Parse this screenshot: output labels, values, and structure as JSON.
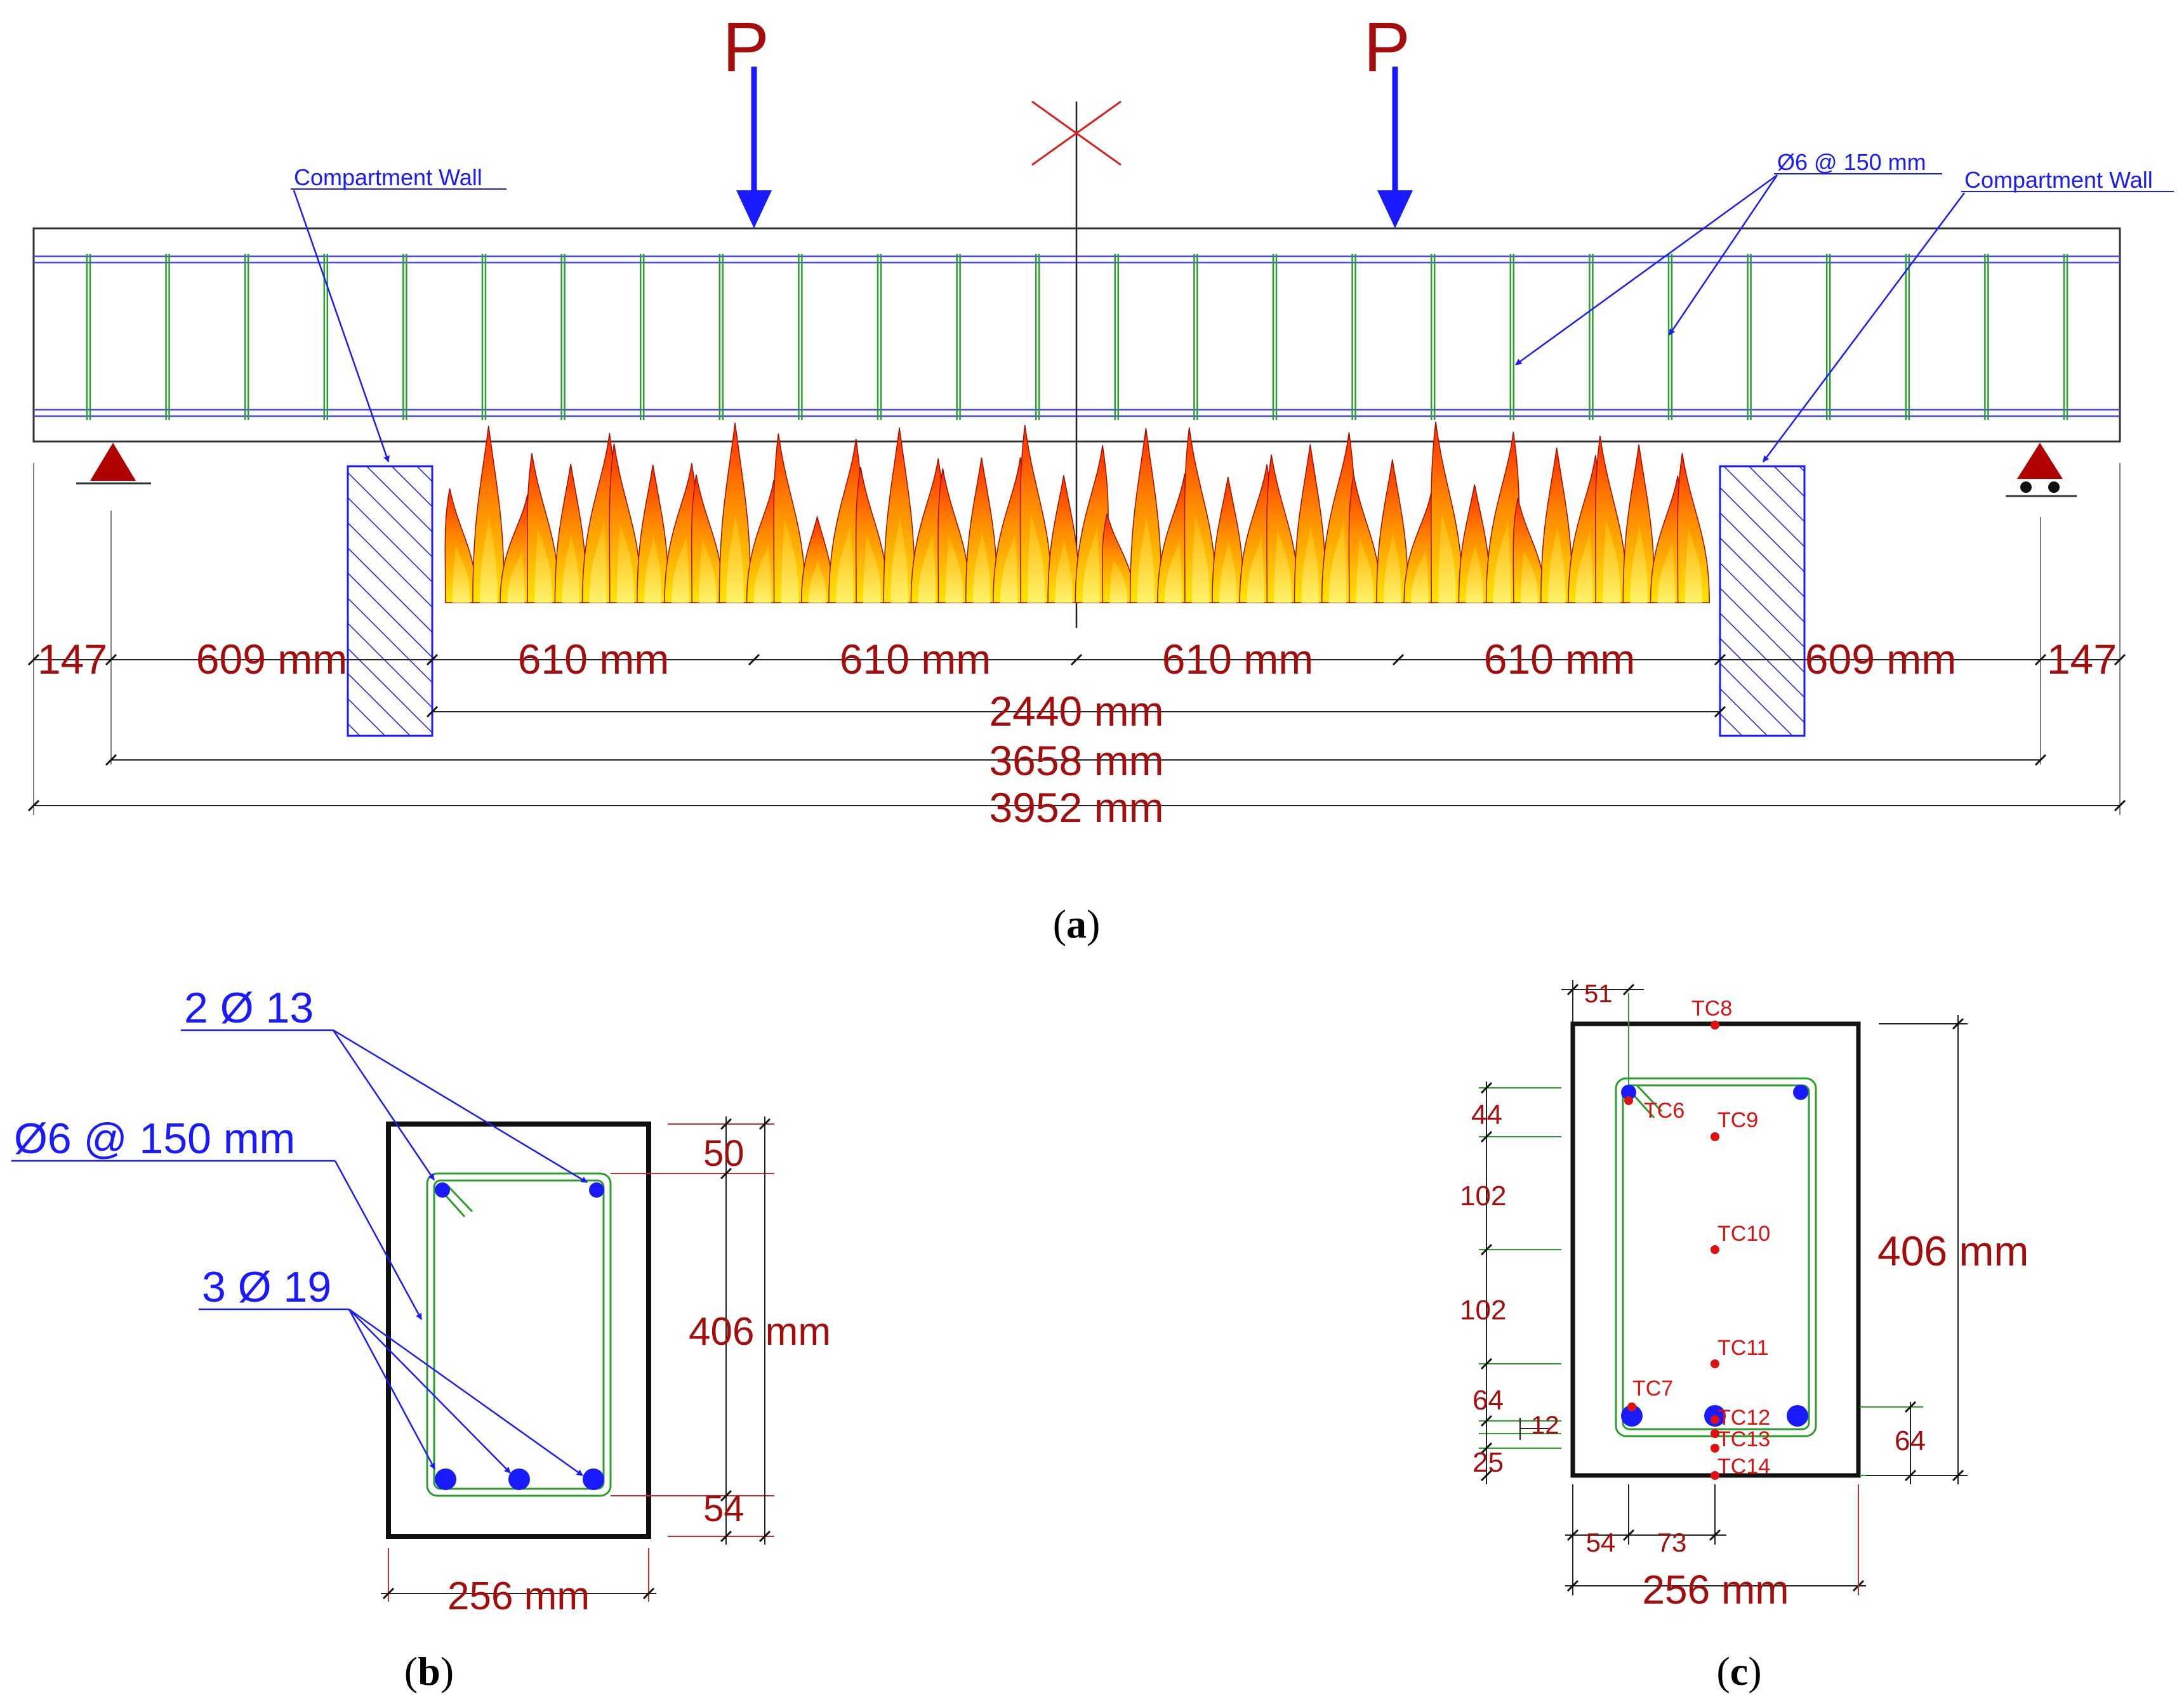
{
  "panel_a": {
    "load_label_left": "P",
    "load_label_right": "P",
    "wall_label_left": "Compartment Wall",
    "wall_label_right": "Compartment Wall",
    "stirrup_label": "Ø6 @ 150 mm",
    "segments": [
      "147",
      "609 mm",
      "610 mm",
      "610 mm",
      "610 mm",
      "610 mm",
      "609 mm",
      "147"
    ],
    "dim_fire": "2440 mm",
    "dim_span": "3658 mm",
    "dim_total": "3952 mm",
    "caption": "a"
  },
  "panel_b": {
    "top_bars": "2 Ø 13",
    "stirrups": "Ø6 @ 150 mm",
    "bottom_bars": "3 Ø 19",
    "cover_top": "50",
    "height": "406 mm",
    "cover_bottom": "54",
    "width": "256 mm",
    "caption": "b"
  },
  "panel_c": {
    "dim_51": "51",
    "dim_44": "44",
    "dim_102a": "102",
    "dim_102b": "102",
    "dim_64": "64",
    "dim_12": "12",
    "dim_25": "25",
    "dim_64_right": "64",
    "height": "406 mm",
    "dim_54": "54",
    "dim_73": "73",
    "width": "256 mm",
    "thermocouples": [
      "TC6",
      "TC7",
      "TC8",
      "TC9",
      "TC10",
      "TC11",
      "TC12",
      "TC13",
      "TC14"
    ],
    "caption": "c"
  },
  "colors": {
    "dimension": "#a50d0d",
    "annotation": "#1a1aff",
    "stirrup": "#2aa02a",
    "thermocouple": "#e01010",
    "support": "#b00000"
  }
}
